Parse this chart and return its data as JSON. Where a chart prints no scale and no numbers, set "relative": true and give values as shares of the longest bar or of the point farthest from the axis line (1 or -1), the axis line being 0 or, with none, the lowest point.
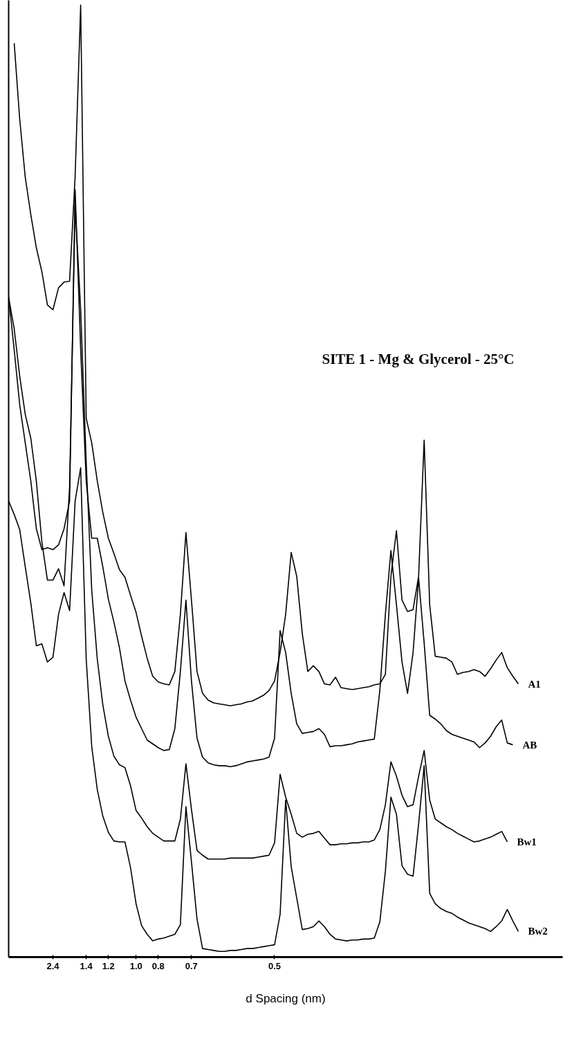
{
  "chart_data": {
    "type": "line",
    "relative": true,
    "title": "SITE 1 - Mg & Glycerol - 25°C",
    "xlabel": "d Spacing (nm)",
    "categories": [
      null,
      null,
      null,
      null,
      null,
      null,
      null,
      null,
      "2.4",
      null,
      null,
      null,
      null,
      null,
      "1.4",
      null,
      null,
      null,
      "1.2",
      null,
      null,
      null,
      null,
      "1.0",
      null,
      null,
      null,
      "0.8",
      null,
      null,
      null,
      null,
      null,
      "0.7",
      null,
      null,
      null,
      null,
      null,
      null,
      null,
      null,
      null,
      null,
      null,
      null,
      null,
      null,
      "0.5",
      null,
      null,
      null,
      null,
      null,
      null,
      null,
      null,
      null,
      null,
      null,
      null,
      null,
      null,
      null,
      null,
      null,
      null,
      null,
      null,
      null,
      null,
      null,
      null,
      null,
      null,
      null,
      null,
      null,
      null,
      null,
      null,
      null,
      null,
      null,
      null,
      null,
      null,
      null,
      null,
      null,
      null,
      null,
      null
    ],
    "legend": false,
    "line_style": "solid",
    "marker": "none",
    "series": [
      {
        "name": "A1",
        "color": "#000000",
        "values": [
          null,
          0.96,
          0.88,
          0.819,
          0.78,
          0.745,
          0.72,
          0.685,
          0.68,
          0.703,
          0.709,
          0.71,
          0.82,
          1.0,
          0.566,
          0.54,
          0.5,
          0.467,
          0.44,
          0.424,
          0.407,
          0.399,
          0.38,
          0.362,
          0.337,
          0.314,
          0.295,
          0.289,
          0.287,
          0.286,
          0.3,
          0.36,
          0.446,
          0.375,
          0.3,
          0.277,
          0.27,
          0.267,
          0.266,
          0.265,
          0.264,
          0.265,
          0.266,
          0.268,
          0.269,
          0.272,
          0.275,
          0.28,
          0.29,
          0.32,
          0.36,
          0.425,
          0.4,
          0.34,
          0.3,
          0.306,
          0.3,
          0.287,
          0.286,
          0.294,
          0.283,
          0.282,
          0.281,
          0.282,
          0.283,
          0.284,
          0.286,
          0.287,
          0.297,
          0.4,
          0.448,
          0.375,
          0.363,
          0.365,
          0.4,
          0.543,
          0.37,
          0.316,
          0.315,
          0.314,
          0.31,
          0.297,
          0.299,
          0.3,
          0.302,
          0.3,
          0.295,
          0.303,
          0.312,
          0.32,
          0.304,
          0.295,
          0.287
        ]
      },
      {
        "name": "AB",
        "color": "#000000",
        "values": [
          0.693,
          0.638,
          0.58,
          0.54,
          0.5,
          0.45,
          0.428,
          0.43,
          0.428,
          0.433,
          0.45,
          0.479,
          0.806,
          0.638,
          0.5,
          0.44,
          0.44,
          0.41,
          0.376,
          0.352,
          0.325,
          0.29,
          0.27,
          0.252,
          0.24,
          0.228,
          0.224,
          0.22,
          0.217,
          0.218,
          0.24,
          0.3,
          0.375,
          0.29,
          0.23,
          0.21,
          0.204,
          0.202,
          0.201,
          0.201,
          0.2,
          0.201,
          0.203,
          0.205,
          0.206,
          0.207,
          0.208,
          0.21,
          0.23,
          0.343,
          0.32,
          0.277,
          0.245,
          0.235,
          0.236,
          0.237,
          0.24,
          0.234,
          0.221,
          0.222,
          0.222,
          0.223,
          0.224,
          0.226,
          0.227,
          0.228,
          0.229,
          0.28,
          0.36,
          0.427,
          0.37,
          0.31,
          0.277,
          0.32,
          0.398,
          0.33,
          0.254,
          0.25,
          0.245,
          0.238,
          0.234,
          0.232,
          0.23,
          0.228,
          0.226,
          0.22,
          0.225,
          0.232,
          0.242,
          0.249,
          0.225,
          0.223,
          null
        ]
      },
      {
        "name": "Bw1",
        "color": "#000000",
        "values": [
          0.693,
          0.66,
          0.61,
          0.57,
          0.545,
          0.5,
          0.436,
          0.396,
          0.396,
          0.408,
          0.39,
          0.494,
          0.79,
          0.68,
          0.52,
          0.385,
          0.313,
          0.265,
          0.232,
          0.211,
          0.202,
          0.199,
          0.18,
          0.154,
          0.146,
          0.137,
          0.13,
          0.126,
          0.122,
          0.122,
          0.122,
          0.145,
          0.203,
          0.155,
          0.112,
          0.107,
          0.103,
          0.103,
          0.103,
          0.103,
          0.104,
          0.104,
          0.104,
          0.104,
          0.104,
          0.105,
          0.106,
          0.107,
          0.12,
          0.192,
          0.168,
          0.15,
          0.13,
          0.126,
          0.129,
          0.13,
          0.132,
          0.125,
          0.118,
          0.118,
          0.119,
          0.119,
          0.12,
          0.12,
          0.121,
          0.121,
          0.123,
          0.134,
          0.16,
          0.205,
          0.19,
          0.17,
          0.158,
          0.16,
          0.19,
          0.217,
          0.165,
          0.145,
          0.141,
          0.137,
          0.134,
          0.13,
          0.127,
          0.124,
          0.121,
          0.122,
          0.124,
          0.126,
          0.129,
          0.132,
          0.121,
          null,
          null
        ]
      },
      {
        "name": "Bw2",
        "color": "#000000",
        "values": [
          0.479,
          0.465,
          0.449,
          0.41,
          0.372,
          0.327,
          0.329,
          0.31,
          0.315,
          0.36,
          0.383,
          0.364,
          0.479,
          0.514,
          0.313,
          0.221,
          0.176,
          0.148,
          0.131,
          0.122,
          0.121,
          0.121,
          0.094,
          0.056,
          0.033,
          0.024,
          0.017,
          0.019,
          0.02,
          0.022,
          0.024,
          0.034,
          0.158,
          0.1,
          0.04,
          0.009,
          0.008,
          0.007,
          0.006,
          0.006,
          0.007,
          0.007,
          0.008,
          0.009,
          0.009,
          0.01,
          0.011,
          0.012,
          0.013,
          0.045,
          0.165,
          0.095,
          0.062,
          0.029,
          0.03,
          0.032,
          0.038,
          0.032,
          0.024,
          0.019,
          0.018,
          0.017,
          0.018,
          0.018,
          0.019,
          0.019,
          0.02,
          0.037,
          0.09,
          0.168,
          0.15,
          0.096,
          0.087,
          0.085,
          0.14,
          0.201,
          0.067,
          0.056,
          0.051,
          0.048,
          0.046,
          0.042,
          0.039,
          0.036,
          0.034,
          0.032,
          0.03,
          0.027,
          0.032,
          0.038,
          0.05,
          0.038,
          0.027
        ]
      }
    ]
  }
}
